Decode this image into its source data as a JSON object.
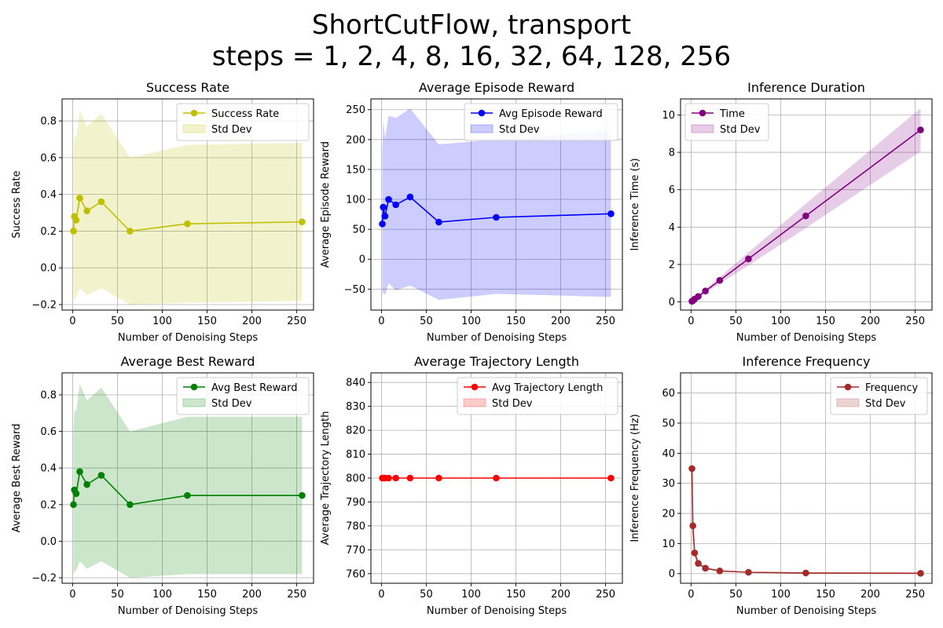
{
  "figure": {
    "title_line1": "ShortCutFlow, transport",
    "title_line2": "steps = 1, 2, 4, 8, 16, 32, 64, 128, 256"
  },
  "chart_data": [
    {
      "type": "line",
      "title": "Success Rate",
      "xlabel": "Number of Denoising Steps",
      "ylabel": "Success Rate",
      "xlim": [
        -11.75,
        268.75
      ],
      "ylim": [
        -0.23,
        0.92
      ],
      "xticks": [
        0,
        50,
        100,
        150,
        200,
        250
      ],
      "yticks": [
        -0.2,
        0.0,
        0.2,
        0.4,
        0.6,
        0.8
      ],
      "ytick_decimals": 1,
      "grid": true,
      "legend_placement": "upper right",
      "color": "#bfbf00",
      "series": [
        {
          "name": "Success Rate",
          "x": [
            1,
            2,
            4,
            8,
            16,
            32,
            64,
            128,
            256
          ],
          "y": [
            0.2,
            0.28,
            0.26,
            0.38,
            0.31,
            0.36,
            0.2,
            0.24,
            0.25
          ],
          "std_upper": [
            0.6,
            0.72,
            0.71,
            0.86,
            0.77,
            0.84,
            0.6,
            0.67,
            0.68
          ],
          "std_lower": [
            -0.18,
            -0.17,
            -0.16,
            -0.11,
            -0.15,
            -0.11,
            -0.2,
            -0.19,
            -0.18
          ]
        }
      ],
      "legend": [
        "Success Rate",
        "Std Dev"
      ]
    },
    {
      "type": "line",
      "title": "Average Episode Reward",
      "xlabel": "Number of Denoising Steps",
      "ylabel": "Average Episode Reward",
      "xlim": [
        -11.75,
        268.75
      ],
      "ylim": [
        -85,
        268
      ],
      "xticks": [
        0,
        50,
        100,
        150,
        200,
        250
      ],
      "yticks": [
        -50,
        0,
        50,
        100,
        150,
        200,
        250
      ],
      "ytick_decimals": 0,
      "grid": true,
      "legend_placement": "upper right",
      "color": "#0000ff",
      "series": [
        {
          "name": "Avg Episode Reward",
          "x": [
            1,
            2,
            4,
            8,
            16,
            32,
            64,
            128,
            256
          ],
          "y": [
            59,
            87,
            72,
            100,
            91,
            104,
            62,
            70,
            76
          ],
          "std_upper": [
            180,
            232,
            202,
            240,
            236,
            252,
            192,
            200,
            215
          ],
          "std_lower": [
            -62,
            -55,
            -60,
            -40,
            -52,
            -44,
            -68,
            -58,
            -63
          ]
        }
      ],
      "legend": [
        "Avg Episode Reward",
        "Std Dev"
      ]
    },
    {
      "type": "line",
      "title": "Inference Duration",
      "xlabel": "Number of Denoising Steps",
      "ylabel": "Inference Time (s)",
      "xlim": [
        -11.75,
        268.75
      ],
      "ylim": [
        -0.44,
        10.86
      ],
      "xticks": [
        0,
        50,
        100,
        150,
        200,
        250
      ],
      "yticks": [
        0,
        2,
        4,
        6,
        8,
        10
      ],
      "ytick_decimals": 0,
      "grid": true,
      "legend_placement": "upper left",
      "color": "#800080",
      "series": [
        {
          "name": "Time",
          "x": [
            1,
            2,
            4,
            8,
            16,
            32,
            64,
            128,
            256
          ],
          "y": [
            0.03,
            0.06,
            0.15,
            0.29,
            0.58,
            1.15,
            2.3,
            4.6,
            9.2
          ],
          "std_upper": [
            0.04,
            0.08,
            0.18,
            0.34,
            0.68,
            1.33,
            2.65,
            5.25,
            10.35
          ],
          "std_lower": [
            0.02,
            0.04,
            0.12,
            0.24,
            0.48,
            0.97,
            1.95,
            3.95,
            8.05
          ]
        }
      ],
      "legend": [
        "Time",
        "Std Dev"
      ]
    },
    {
      "type": "line",
      "title": "Average Best Reward",
      "xlabel": "Number of Denoising Steps",
      "ylabel": "Average Best Reward",
      "xlim": [
        -11.75,
        268.75
      ],
      "ylim": [
        -0.23,
        0.92
      ],
      "xticks": [
        0,
        50,
        100,
        150,
        200,
        250
      ],
      "yticks": [
        -0.2,
        0.0,
        0.2,
        0.4,
        0.6,
        0.8
      ],
      "ytick_decimals": 1,
      "grid": true,
      "legend_placement": "upper right",
      "color": "#008000",
      "series": [
        {
          "name": "Avg Best Reward",
          "x": [
            1,
            2,
            4,
            8,
            16,
            32,
            64,
            128,
            256
          ],
          "y": [
            0.2,
            0.28,
            0.26,
            0.38,
            0.31,
            0.36,
            0.2,
            0.25,
            0.25
          ],
          "std_upper": [
            0.6,
            0.72,
            0.71,
            0.86,
            0.77,
            0.84,
            0.6,
            0.68,
            0.68
          ],
          "std_lower": [
            -0.18,
            -0.17,
            -0.16,
            -0.11,
            -0.15,
            -0.11,
            -0.2,
            -0.18,
            -0.18
          ]
        }
      ],
      "legend": [
        "Avg Best Reward",
        "Std Dev"
      ]
    },
    {
      "type": "line",
      "title": "Average Trajectory Length",
      "xlabel": "Number of Denoising Steps",
      "ylabel": "Average Trajectory Length",
      "xlim": [
        -11.75,
        268.75
      ],
      "ylim": [
        756,
        844
      ],
      "xticks": [
        0,
        50,
        100,
        150,
        200,
        250
      ],
      "yticks": [
        760,
        770,
        780,
        790,
        800,
        810,
        820,
        830,
        840
      ],
      "ytick_decimals": 0,
      "grid": true,
      "legend_placement": "upper right",
      "color": "#ff0000",
      "series": [
        {
          "name": "Avg Trajectory Length",
          "x": [
            1,
            2,
            4,
            8,
            16,
            32,
            64,
            128,
            256
          ],
          "y": [
            800,
            800,
            800,
            800,
            800,
            800,
            800,
            800,
            800
          ],
          "std_upper": [
            800,
            800,
            800,
            800,
            800,
            800,
            800,
            800,
            800
          ],
          "std_lower": [
            800,
            800,
            800,
            800,
            800,
            800,
            800,
            800,
            800
          ]
        }
      ],
      "legend": [
        "Avg Trajectory Length",
        "Std Dev"
      ]
    },
    {
      "type": "line",
      "title": "Inference Frequency",
      "xlabel": "Number of Denoising Steps",
      "ylabel": "Inference Frequency (Hz)",
      "xlim": [
        -11.75,
        268.75
      ],
      "ylim": [
        -3.2,
        66.7
      ],
      "xticks": [
        0,
        50,
        100,
        150,
        200,
        250
      ],
      "yticks": [
        0,
        10,
        20,
        30,
        40,
        50,
        60
      ],
      "ytick_decimals": 0,
      "grid": true,
      "legend_placement": "upper right",
      "color": "#a52a2a",
      "series": [
        {
          "name": "Frequency",
          "x": [
            1,
            2,
            4,
            8,
            16,
            32,
            64,
            128,
            256
          ],
          "y": [
            34.9,
            15.9,
            6.9,
            3.4,
            1.8,
            0.9,
            0.45,
            0.22,
            0.11
          ],
          "std_upper": [
            63.5,
            20.5,
            8.5,
            4.0,
            2.1,
            1.05,
            0.52,
            0.26,
            0.13
          ],
          "std_lower": [
            6.0,
            11.5,
            5.4,
            2.8,
            1.5,
            0.75,
            0.38,
            0.19,
            0.09
          ]
        }
      ],
      "legend": [
        "Frequency",
        "Std Dev"
      ]
    }
  ]
}
